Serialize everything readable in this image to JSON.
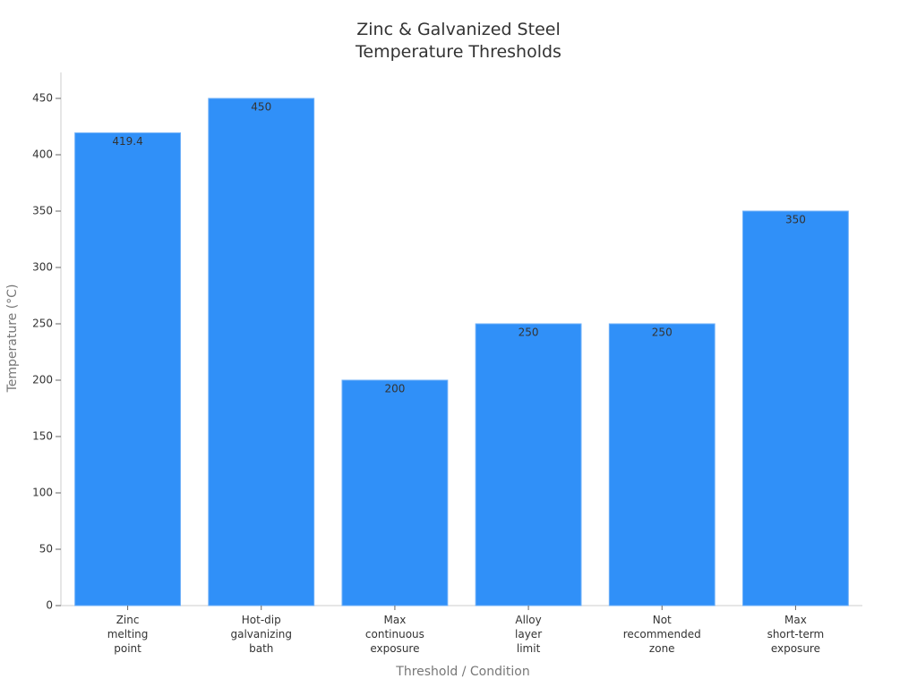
{
  "chart_data": {
    "type": "bar",
    "title": "Zinc & Galvanized Steel\nTemperature Thresholds",
    "x_label": "Threshold / Condition",
    "y_label": "Temperature (°C)",
    "categories": [
      "Zinc\nmelting\npoint",
      "Hot-dip\ngalvanizing\nbath",
      "Max\ncontinuous\nexposure",
      "Alloy\nlayer\nlimit",
      "Not\nrecommended\nzone",
      "Max\nshort-term\nexposure"
    ],
    "values": [
      419.4,
      450,
      200,
      250,
      250,
      350
    ],
    "color": "#3090f8",
    "ylim": [
      0,
      472.5
    ],
    "yticks": [
      0,
      50,
      100,
      150,
      200,
      250,
      300,
      350,
      400,
      450
    ],
    "grid": false
  }
}
